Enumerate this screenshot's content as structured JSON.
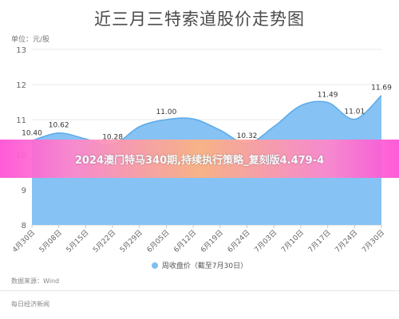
{
  "chart_data": {
    "type": "area",
    "title": "近三月三特索道股价走势图",
    "unit_label": "单位：元/股",
    "x": [
      "4月30日",
      "5月08日",
      "5月15日",
      "5月22日",
      "5月29日",
      "6月05日",
      "6月12日",
      "6月19日",
      "6月24日",
      "7月03日",
      "7月10日",
      "7月17日",
      "7月24日",
      "7月30日"
    ],
    "series": [
      {
        "name": "周收盘价（截至7月30日）",
        "values": [
          10.4,
          10.62,
          10.45,
          10.28,
          10.8,
          11.0,
          11.02,
          10.7,
          10.32,
          10.8,
          11.4,
          11.49,
          11.01,
          11.69
        ],
        "color": "#86c2f3",
        "line_color": "#5aaaea"
      }
    ],
    "data_labels": [
      {
        "index": 0,
        "text": "10.40"
      },
      {
        "index": 1,
        "text": "10.62"
      },
      {
        "index": 3,
        "text": "10.28"
      },
      {
        "index": 5,
        "text": "11.00"
      },
      {
        "index": 8,
        "text": "10.32"
      },
      {
        "index": 11,
        "text": "11.49"
      },
      {
        "index": 12,
        "text": "11.01"
      },
      {
        "index": 13,
        "text": "11.69"
      }
    ],
    "ylim": [
      8,
      13
    ],
    "yticks": [
      "8",
      "9",
      "10",
      "11",
      "12",
      "13"
    ],
    "grid": true,
    "legend": "bottom-center"
  },
  "banner_text": "2024澳门特马340期,持续执行策略_复刻版4.479-4",
  "source_text": "数据来源：Wind",
  "footer_text": "每日经济新闻"
}
